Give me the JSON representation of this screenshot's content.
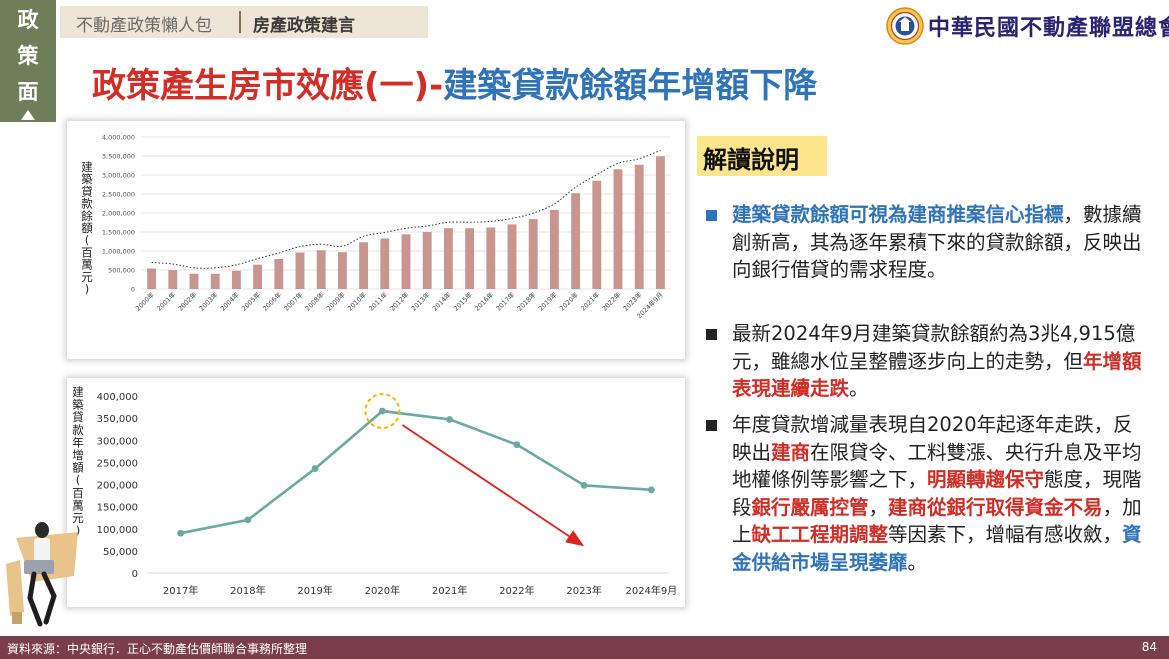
{
  "sidebar_tab": {
    "chars": [
      "政",
      "策",
      "面"
    ]
  },
  "breadcrumb": {
    "section": "不動產政策懶人包",
    "current": "房產政策建言"
  },
  "logo": {
    "text": "中華民國不動產聯盟總會"
  },
  "title": {
    "part1": "政策產生房市效應(一)-",
    "part2": "建築貸款餘額年增額下降"
  },
  "explanation": {
    "heading": "解讀說明",
    "bullet1": {
      "h1": "建築貸款餘額可視為建商推案信心指標",
      "t1": "，數據續創新高，其為逐年累積下來的貸款餘額，反映出向銀行借貸的需求程度。"
    },
    "bullet2": {
      "t1": "最新2024年9月建築貸款餘額約為3兆4,915億元，雖總水位呈整體逐步向上的走勢，但",
      "h1": "年增額表現連續走跌",
      "t2": "。"
    },
    "bullet3": {
      "t1": "年度貸款增減量表現自2020年起逐年走跌，反映出",
      "h1": "建商",
      "t2": "在限貸令、工料雙漲、央行升息及平均地權條例等影響之下，",
      "h2": "明顯轉趨保守",
      "t3": "態度，現階段",
      "h3": "銀行嚴厲控管",
      "t4": "，",
      "h4": "建商從銀行取得資金不易",
      "t5": "，加上",
      "h5": "缺工工程期調整",
      "t6": "等因素下，增幅有感收斂，",
      "h6": "資金供給市場呈現萎靡",
      "t7": "。"
    }
  },
  "footer": {
    "source": "資料來源：中央銀行．正心不動產估價師聯合事務所整理",
    "page": "84"
  },
  "colors": {
    "bar": "#c9968f",
    "line": "#6ba9a3",
    "accent_red": "#d12e27",
    "accent_blue": "#2f73b8",
    "tab_green": "#6f7e58",
    "footer": "#7a3e4a",
    "highlight_yellow": "#fde58c"
  },
  "chart_data": [
    {
      "type": "bar",
      "title": "",
      "ylabel": "建築貸款餘額(百萬元)",
      "xlabel": "",
      "categories": [
        "2000年",
        "2001年",
        "2002年",
        "2003年",
        "2004年",
        "2005年",
        "2006年",
        "2007年",
        "2008年",
        "2009年",
        "2010年",
        "2011年",
        "2012年",
        "2013年",
        "2014年",
        "2015年",
        "2016年",
        "2017年",
        "2018年",
        "2019年",
        "2020年",
        "2021年",
        "2022年",
        "2023年",
        "2024年9月"
      ],
      "values": [
        540000,
        500000,
        400000,
        400000,
        480000,
        640000,
        790000,
        960000,
        1020000,
        970000,
        1230000,
        1330000,
        1440000,
        1500000,
        1600000,
        1600000,
        1620000,
        1700000,
        1840000,
        2080000,
        2520000,
        2850000,
        3150000,
        3270000,
        3491500
      ],
      "trendline": "dotted polynomial",
      "ylim": [
        0,
        4000000
      ],
      "yticks": [
        0,
        500000,
        1000000,
        1500000,
        2000000,
        2500000,
        3000000,
        3500000,
        4000000
      ],
      "ytick_labels": [
        "0",
        "500,000",
        "1,000,000",
        "1,500,000",
        "2,000,000",
        "2,500,000",
        "3,000,000",
        "3,500,000",
        "4,000,000"
      ]
    },
    {
      "type": "line",
      "title": "",
      "ylabel": "建築貸款年增額(百萬元)",
      "xlabel": "",
      "categories": [
        "2017年",
        "2018年",
        "2019年",
        "2020年",
        "2021年",
        "2022年",
        "2023年",
        "2024年9月"
      ],
      "values": [
        90000,
        120000,
        236000,
        366000,
        347000,
        290000,
        198000,
        188000
      ],
      "ylim": [
        0,
        400000
      ],
      "yticks": [
        0,
        50000,
        100000,
        150000,
        200000,
        250000,
        300000,
        350000,
        400000
      ],
      "ytick_labels": [
        "0",
        "50,000",
        "100,000",
        "150,000",
        "200,000",
        "250,000",
        "300,000",
        "350,000",
        "400,000"
      ],
      "annotations": [
        "peak circle at 2020年",
        "red downward arrow 2020年→2023年"
      ]
    }
  ]
}
